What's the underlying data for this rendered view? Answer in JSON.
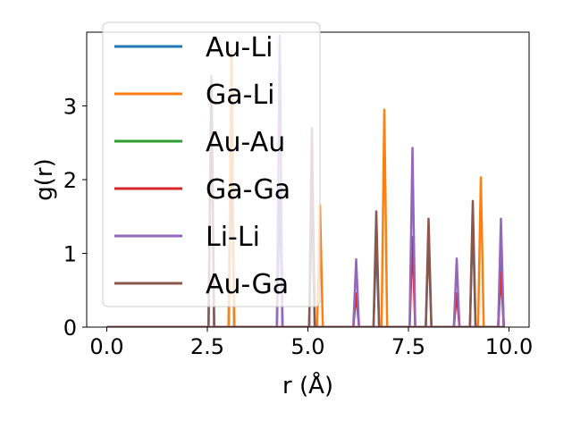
{
  "chart_data": {
    "type": "line",
    "xlabel": "r (Å)",
    "ylabel": "g(r)",
    "xlim": [
      -0.5,
      10.5
    ],
    "ylim": [
      0,
      4.0
    ],
    "xticks": [
      0.0,
      2.5,
      5.0,
      7.5,
      10.0
    ],
    "xtick_labels": [
      "0.0",
      "2.5",
      "5.0",
      "7.5",
      "10.0"
    ],
    "yticks": [
      0,
      1,
      2,
      3
    ],
    "ytick_labels": [
      "0",
      "1",
      "2",
      "3"
    ],
    "grid": false,
    "legend_position": "upper left",
    "baseline_range": [
      0.0,
      9.9
    ],
    "series": [
      {
        "name": "Au-Li",
        "color": "#1f77b4",
        "peaks": [
          [
            2.6,
            3.35
          ],
          [
            3.1,
            2.45
          ],
          [
            4.3,
            1.9
          ],
          [
            5.1,
            1.8
          ],
          [
            6.7,
            1.2
          ],
          [
            8.0,
            1.2
          ],
          [
            9.1,
            1.5
          ],
          [
            9.8,
            1.0
          ]
        ]
      },
      {
        "name": "Ga-Li",
        "color": "#ff7f0e",
        "peaks": [
          [
            3.1,
            3.75
          ],
          [
            5.3,
            1.65
          ],
          [
            6.9,
            2.95
          ],
          [
            9.3,
            2.03
          ]
        ]
      },
      {
        "name": "Au-Au",
        "color": "#2ca02c",
        "peaks": []
      },
      {
        "name": "Ga-Ga",
        "color": "#d62728",
        "peaks": [
          [
            6.2,
            0.46
          ],
          [
            7.6,
            1.22
          ],
          [
            8.7,
            0.46
          ],
          [
            9.8,
            0.75
          ]
        ]
      },
      {
        "name": "Li-Li",
        "color": "#9467bd",
        "peaks": [
          [
            4.3,
            3.95
          ],
          [
            6.2,
            0.92
          ],
          [
            7.6,
            2.43
          ],
          [
            8.7,
            0.93
          ],
          [
            9.8,
            1.47
          ]
        ]
      },
      {
        "name": "Au-Ga",
        "color": "#8c564b",
        "peaks": [
          [
            2.6,
            3.4
          ],
          [
            5.1,
            2.7
          ],
          [
            6.7,
            1.57
          ],
          [
            8.0,
            1.47
          ],
          [
            9.1,
            1.71
          ]
        ]
      }
    ]
  }
}
